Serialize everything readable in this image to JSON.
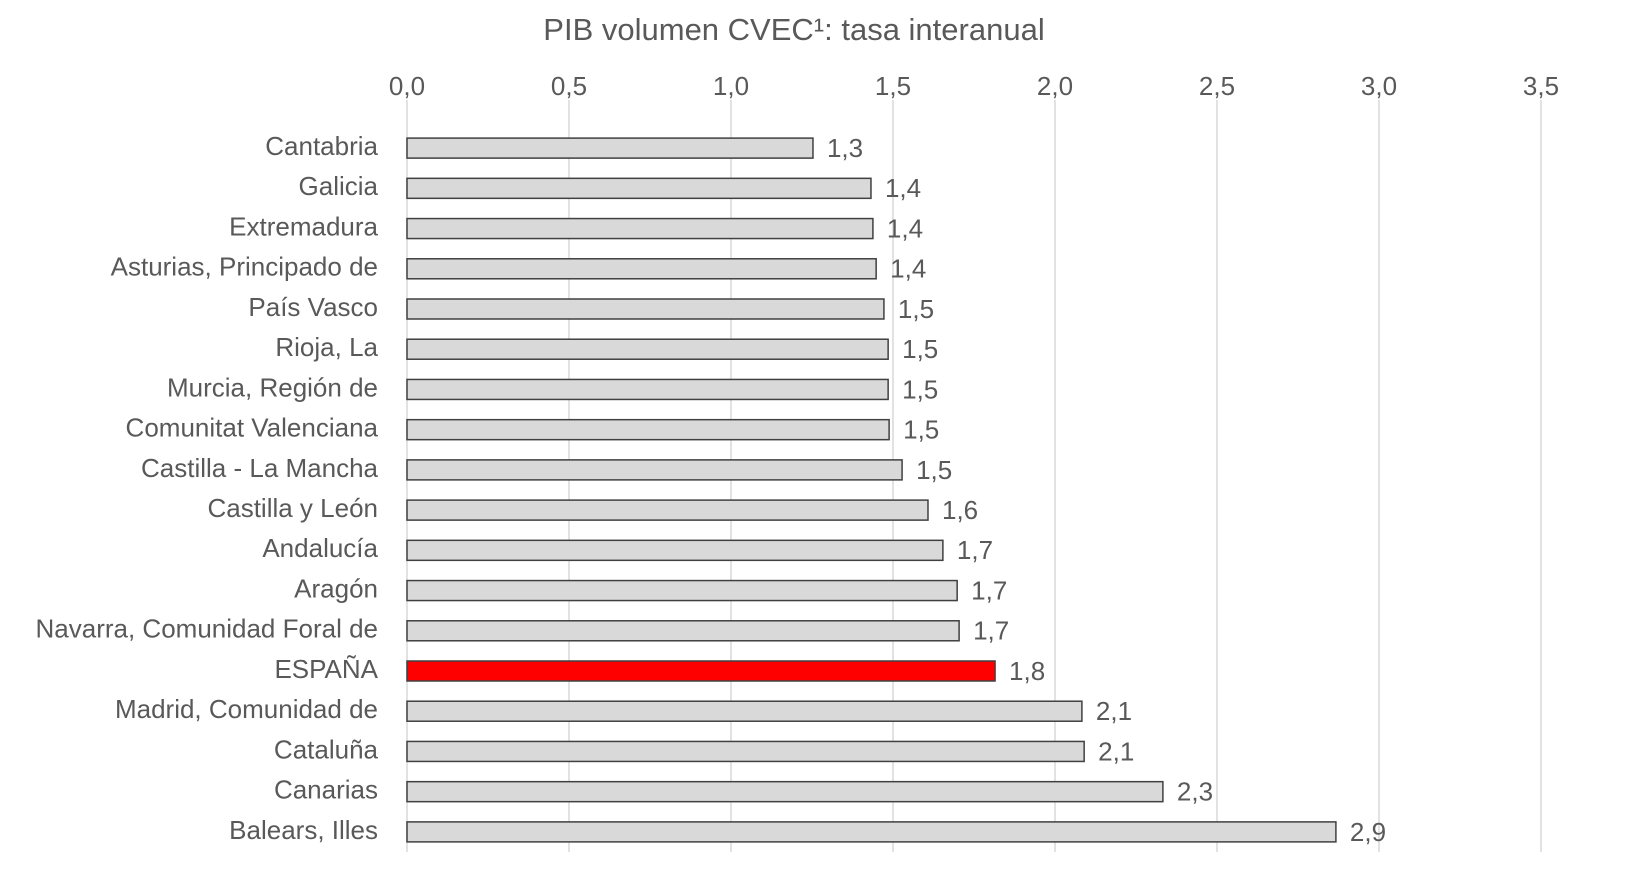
{
  "chart_data": {
    "type": "bar",
    "orientation": "horizontal",
    "title": "PIB volumen CVEC¹: tasa interanual",
    "categories": [
      "Cantabria",
      "Galicia",
      "Extremadura",
      "Asturias, Principado de",
      "País Vasco",
      "Rioja, La",
      "Murcia, Región de",
      "Comunitat Valenciana",
      "Castilla - La Mancha",
      "Castilla y León",
      "Andalucía",
      "Aragón",
      "Navarra, Comunidad Foral de",
      "ESPAÑA",
      "Madrid, Comunidad de",
      "Cataluña",
      "Canarias",
      "Balears, Illes"
    ],
    "values": [
      1.253,
      1.432,
      1.438,
      1.448,
      1.472,
      1.485,
      1.485,
      1.488,
      1.528,
      1.608,
      1.654,
      1.698,
      1.704,
      1.815,
      2.083,
      2.09,
      2.333,
      2.867
    ],
    "value_labels": [
      "1,3",
      "1,4",
      "1,4",
      "1,4",
      "1,5",
      "1,5",
      "1,5",
      "1,5",
      "1,5",
      "1,6",
      "1,7",
      "1,7",
      "1,7",
      "1,8",
      "2,1",
      "2,1",
      "2,3",
      "2,9"
    ],
    "colors": [
      "#d9d9d9",
      "#d9d9d9",
      "#d9d9d9",
      "#d9d9d9",
      "#d9d9d9",
      "#d9d9d9",
      "#d9d9d9",
      "#d9d9d9",
      "#d9d9d9",
      "#d9d9d9",
      "#d9d9d9",
      "#d9d9d9",
      "#d9d9d9",
      "#ff0000",
      "#d9d9d9",
      "#d9d9d9",
      "#d9d9d9",
      "#d9d9d9"
    ],
    "xlim": [
      0,
      3.5
    ],
    "xticks": [
      {
        "value": 0,
        "label": "0,0"
      },
      {
        "value": 0.5,
        "label": "0,5"
      },
      {
        "value": 1,
        "label": "1,0"
      },
      {
        "value": 1.5,
        "label": "1,5"
      },
      {
        "value": 2,
        "label": "2,0"
      },
      {
        "value": 2.5,
        "label": "2,5"
      },
      {
        "value": 3,
        "label": "3,0"
      },
      {
        "value": 3.5,
        "label": "3,5"
      }
    ],
    "grid": true
  }
}
